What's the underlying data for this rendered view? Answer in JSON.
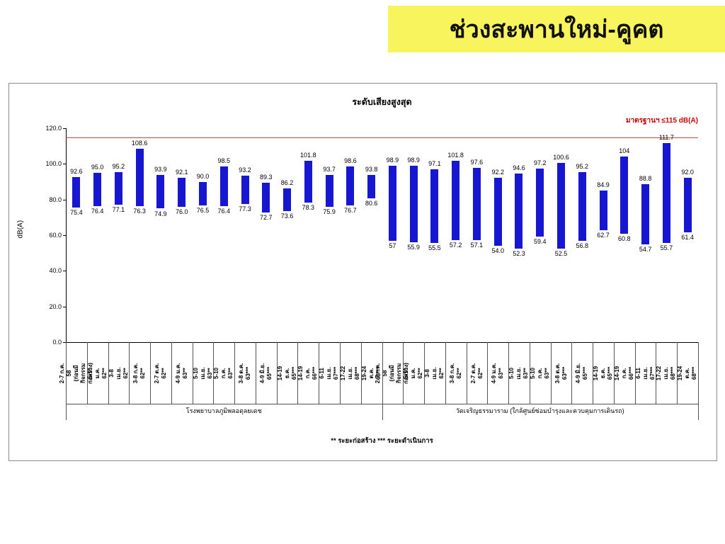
{
  "banner": {
    "title": "ช่วงสะพานใหม่-คูคต",
    "background": "#F7F45E"
  },
  "chart_data": {
    "type": "bar",
    "subtype": "floating-range-bar",
    "title": "ระดับเสียงสูงสุด",
    "ylabel": "dB(A)",
    "ylim": [
      0,
      120
    ],
    "yticks": [
      "0.0",
      "20.0",
      "40.0",
      "60.0",
      "80.0",
      "100.0",
      "120.0"
    ],
    "grid": false,
    "legend_position": "none",
    "bar_color": "#1717D1",
    "reference_line": {
      "value": 115,
      "label": "มาตรฐานฯ ≤115 dB(A)",
      "color": "#CC4444",
      "label_color": "#CC0000"
    },
    "footnote": "** ระยะก่อสร้าง     *** ระยะดำเนินการ",
    "groups": [
      {
        "name": "โรงพยาบาลภูมิพลอดุลยเดช",
        "points": [
          {
            "label": "2-7 ก.ค. 58\n(ก่อนมีกิจกรรมก่อสร้าง)",
            "min": "75.4",
            "max": "92.6"
          },
          {
            "label": "5-10 ม.ค. 62**",
            "min": "76.4",
            "max": "95.0"
          },
          {
            "label": "3-8 เม.ย. 62**",
            "min": "77.1",
            "max": "95.2"
          },
          {
            "label": "3-8 ก.ค. 62**",
            "min": "76.3",
            "max": "108.6"
          },
          {
            "label": "2-7 ต.ค. 62**",
            "min": "74.9",
            "max": "93.9"
          },
          {
            "label": "4-9 ม.ค. 63**",
            "min": "76.0",
            "max": "92.1"
          },
          {
            "label": "5-10 เม.ย. 63**",
            "min": "76.5",
            "max": "90.0"
          },
          {
            "label": "5-10 ก.ค. 63**",
            "min": "76.4",
            "max": "98.5"
          },
          {
            "label": "3-8 ต.ค. 63***",
            "min": "77.3",
            "max": "93.2"
          },
          {
            "label": "4-9 มิ.ย. 65***",
            "min": "72.7",
            "max": "89.3"
          },
          {
            "label": "14-19 ธ.ค. 65***",
            "min": "73.6",
            "max": "86.2"
          },
          {
            "label": "14-19 ก.ค. 66***",
            "min": "78.3",
            "max": "101.8"
          },
          {
            "label": "6-11 เม.ย. 67***",
            "min": "75.9",
            "max": "93.7"
          },
          {
            "label": "17-22 เม.ย. 68***",
            "min": "76.7",
            "max": "98.6"
          },
          {
            "label": "19-24 ต.ค. 68***",
            "min": "80.6",
            "max": "93.8"
          }
        ]
      },
      {
        "name": "วัดเจริญธรรมาราม (ใกล้ศูนย์ซ่อมบำรุงและควบคุมการเดินรถ)",
        "points": [
          {
            "label": "2-7 ก.ค. 58\n(ก่อนมีกิจกรรมก่อสร้าง)",
            "min": "57",
            "max": "98.9"
          },
          {
            "label": "5-10 ม.ค. 62**",
            "min": "55.9",
            "max": "98.9"
          },
          {
            "label": "3-8 เม.ย. 62**",
            "min": "55.5",
            "max": "97.1"
          },
          {
            "label": "3-8 ก.ค. 62**",
            "min": "57.2",
            "max": "101.8"
          },
          {
            "label": "2-7 ต.ค. 62**",
            "min": "57.1",
            "max": "97.6"
          },
          {
            "label": "4-9 ม.ค. 63**",
            "min": "54.0",
            "max": "92.2"
          },
          {
            "label": "5-10 เม.ย. 63**",
            "min": "52.3",
            "max": "94.6"
          },
          {
            "label": "5-10 ก.ค. 63**",
            "min": "59.4",
            "max": "97.2"
          },
          {
            "label": "3-8 ต.ค. 63***",
            "min": "52.5",
            "max": "100.6"
          },
          {
            "label": "4-9 มิ.ย. 65***",
            "min": "56.8",
            "max": "95.2"
          },
          {
            "label": "14-19 ธ.ค. 65***",
            "min": "62.7",
            "max": "84.9"
          },
          {
            "label": "14-19 ก.ค. 66***",
            "min": "60.8",
            "max": "104"
          },
          {
            "label": "6-11 เม.ย. 67***",
            "min": "54.7",
            "max": "88.8"
          },
          {
            "label": "17-22 เม.ย. 68***",
            "min": "55.7",
            "max": "111.7"
          },
          {
            "label": "19-24 ต.ค. 68***",
            "min": "61.4",
            "max": "92.0"
          }
        ]
      }
    ]
  }
}
